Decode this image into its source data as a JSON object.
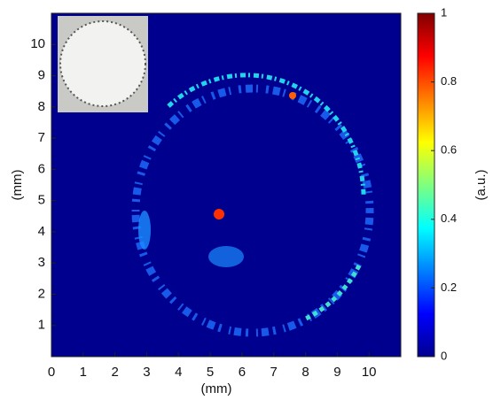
{
  "chart_data": {
    "type": "heatmap",
    "xlabel": "(mm)",
    "ylabel": "(mm)",
    "xlim": [
      0,
      11
    ],
    "ylim": [
      0,
      11
    ],
    "xticks": [
      0,
      1,
      2,
      3,
      4,
      5,
      6,
      7,
      8,
      9,
      10
    ],
    "yticks": [
      1,
      2,
      3,
      4,
      5,
      6,
      7,
      8,
      9,
      10
    ],
    "colormap": "jet",
    "colorbar": {
      "label": "(a.u.)",
      "lim": [
        0,
        1
      ],
      "ticks": [
        0,
        0.2,
        0.4,
        0.6,
        0.8,
        1
      ]
    }
  }
}
